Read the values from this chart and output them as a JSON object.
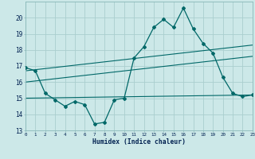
{
  "xlabel": "Humidex (Indice chaleur)",
  "x_values": [
    0,
    1,
    2,
    3,
    4,
    5,
    6,
    7,
    8,
    9,
    10,
    11,
    12,
    13,
    14,
    15,
    16,
    17,
    18,
    19,
    20,
    21,
    22,
    23
  ],
  "main_line": [
    16.9,
    16.7,
    15.3,
    14.9,
    14.5,
    14.8,
    14.6,
    13.4,
    13.5,
    14.9,
    15.0,
    17.5,
    18.2,
    19.4,
    19.9,
    19.4,
    20.6,
    19.3,
    18.4,
    17.8,
    16.3,
    15.3,
    15.1,
    15.2
  ],
  "trend_line1_x": [
    0,
    23
  ],
  "trend_line1_y": [
    16.7,
    18.3
  ],
  "trend_line2_x": [
    0,
    23
  ],
  "trend_line2_y": [
    16.0,
    17.6
  ],
  "trend_line3_x": [
    0,
    23
  ],
  "trend_line3_y": [
    15.0,
    15.2
  ],
  "line_color": "#006868",
  "bg_color": "#cce8e8",
  "grid_color": "#aacece",
  "ylim": [
    13,
    21
  ],
  "yticks": [
    13,
    14,
    15,
    16,
    17,
    18,
    19,
    20
  ],
  "xlim": [
    0,
    23
  ]
}
